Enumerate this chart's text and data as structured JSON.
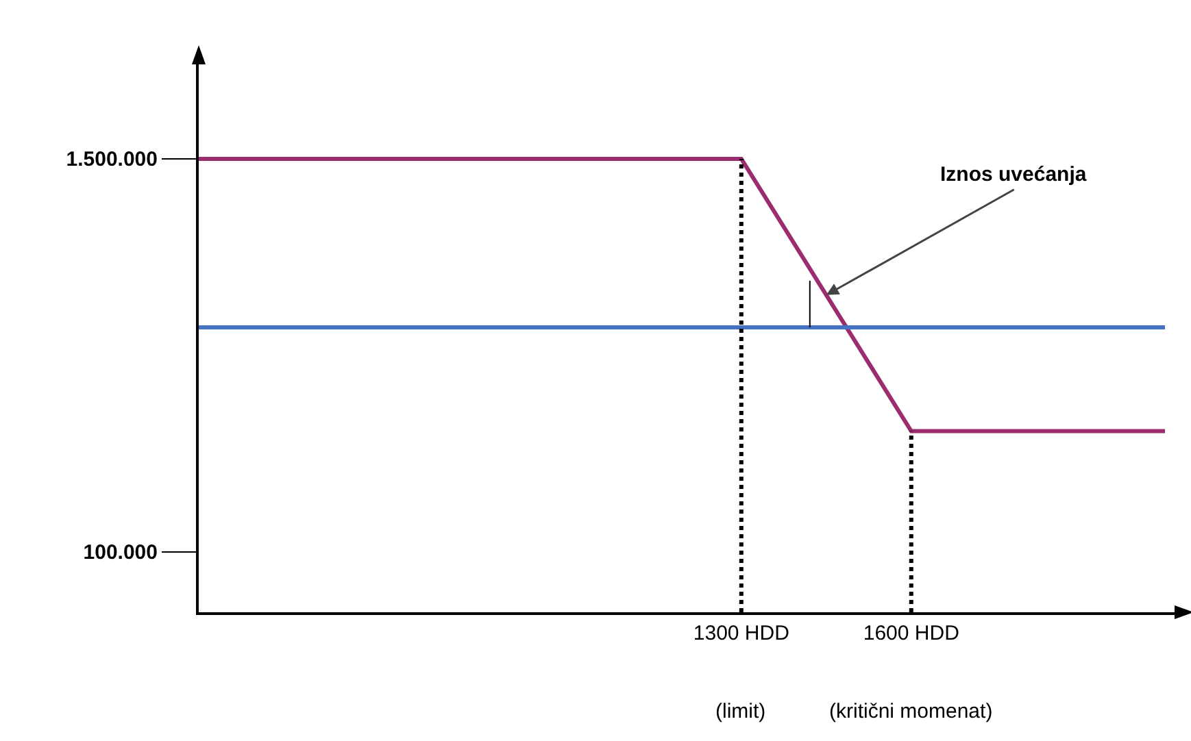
{
  "chart_data": {
    "type": "line",
    "marker": "none",
    "grid": false,
    "xlim": [
      342,
      2077
    ],
    "ylim": [
      -115000,
      1861000
    ],
    "xticks": [
      {
        "value": 1300,
        "label": "1300 HDD"
      },
      {
        "value": 1600,
        "label": "1600 HDD"
      }
    ],
    "yticks": [
      {
        "value": 100000,
        "label": "100.000"
      },
      {
        "value": 1500000,
        "label": "1.500.000"
      }
    ],
    "series": [
      {
        "color": "#9b2d6e",
        "x": [
          342,
          1300,
          1600,
          2048
        ],
        "values": [
          1500000,
          1500000,
          530000,
          530000
        ],
        "line_style": "solid"
      },
      {
        "color": "#4472c4",
        "x": [
          342,
          2048
        ],
        "values": [
          900000,
          900000
        ],
        "line_style": "solid"
      },
      {
        "color": "#000000",
        "x": [
          1300,
          1300
        ],
        "values": [
          -115000,
          1500000
        ],
        "line_style": "dotted"
      },
      {
        "color": "#000000",
        "x": [
          1600,
          1600
        ],
        "values": [
          -115000,
          530000
        ],
        "line_style": "dotted"
      },
      {
        "color": "#000000",
        "x": [
          1421,
          1421
        ],
        "values": [
          900000,
          1066000
        ],
        "line_style": "solid"
      }
    ],
    "annotations": [
      {
        "text": "Iznos uvećanja",
        "x": 1450,
        "y": 1015000
      },
      "(limit)",
      "(kritični momenat)"
    ]
  }
}
